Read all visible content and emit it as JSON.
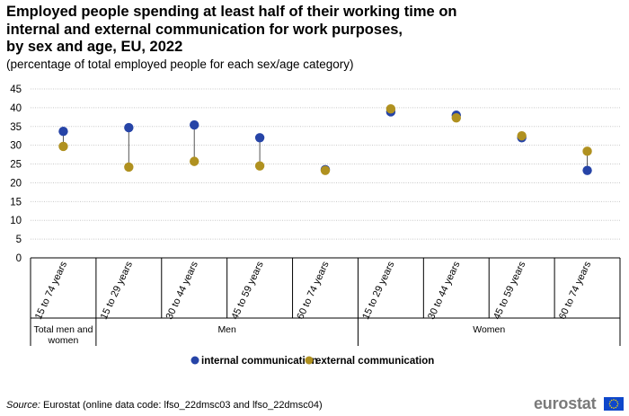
{
  "chart_data": {
    "type": "scatter",
    "title_lines": [
      "Employed people spending at least half of their working time on",
      "internal and external communication for work purposes,",
      "by sex and age, EU, 2022"
    ],
    "subtitle": "(percentage of total employed people for each sex/age category)",
    "xlabel": "",
    "ylabel": "",
    "ylim": [
      0,
      45
    ],
    "yticks": [
      "0",
      "5",
      "10",
      "15",
      "20",
      "25",
      "30",
      "35",
      "40",
      "45"
    ],
    "grid": true,
    "legend_position": "bottom",
    "categories": [
      "15 to 74 years",
      "15 to 29 years",
      "30 to 44 years",
      "45 to 59 years",
      "60 to 74 years",
      "15 to 29 years",
      "30 to 44 years",
      "45 to 59 years",
      "60 to 74 years"
    ],
    "groups": [
      {
        "label_lines": [
          "Total men and",
          "women"
        ],
        "span": [
          0,
          0
        ]
      },
      {
        "label_lines": [
          "Men"
        ],
        "span": [
          1,
          4
        ]
      },
      {
        "label_lines": [
          "Women"
        ],
        "span": [
          5,
          8
        ]
      }
    ],
    "series": [
      {
        "name": "internal communication",
        "color": "#2644a7",
        "values": [
          33.7,
          34.7,
          35.4,
          32.0,
          23.5,
          38.9,
          38.0,
          32.0,
          23.3
        ]
      },
      {
        "name": "external communication",
        "color": "#b09120",
        "values": [
          29.7,
          24.2,
          25.7,
          24.5,
          23.3,
          39.7,
          37.3,
          32.5,
          28.4
        ]
      }
    ]
  },
  "source": {
    "label": "Source:",
    "text": " Eurostat (online data code: lfso_22dmsc03 and lfso_22dmsc04)"
  },
  "logo": {
    "text": "eurostat",
    "flag_color": "#0e47cb",
    "star_color": "#ffde00"
  }
}
